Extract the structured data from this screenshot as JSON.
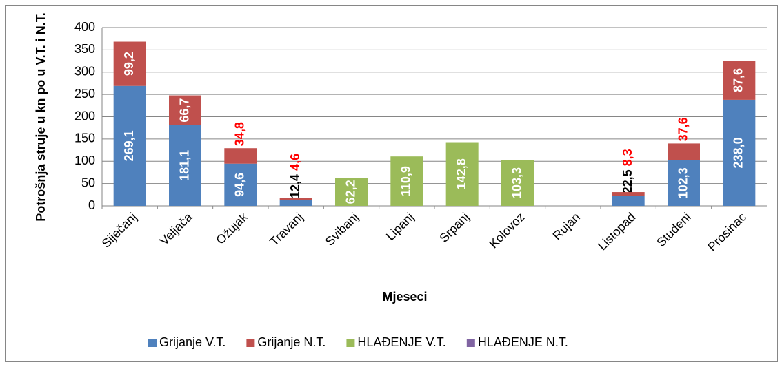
{
  "chart_data": {
    "type": "bar",
    "stacked": true,
    "x_label": "Mjeseci",
    "y_label": "Potrošnja struje u kn po u V.T. i N.T.",
    "categories": [
      "Siječanj",
      "Veljača",
      "Ožujak",
      "Travanj",
      "Svibanj",
      "Lipanj",
      "Srpanj",
      "Kolovoz",
      "Rujan",
      "Listopad",
      "Studeni",
      "Prosinac"
    ],
    "series": [
      {
        "name": "Grijanje V.T.",
        "color": "#4f81bd",
        "values": [
          269.1,
          181.1,
          94.6,
          12.4,
          null,
          null,
          null,
          null,
          null,
          22.5,
          102.3,
          238.0
        ],
        "value_labels": [
          "269,1",
          "181,1",
          "94,6",
          "12,4",
          null,
          null,
          null,
          null,
          null,
          "22,5",
          "102,3",
          "238,0"
        ]
      },
      {
        "name": "Grijanje N.T.",
        "color": "#c0504d",
        "values": [
          99.2,
          66.7,
          34.8,
          4.6,
          null,
          null,
          null,
          null,
          null,
          8.3,
          37.6,
          87.6
        ],
        "value_labels": [
          "99,2",
          "66,7",
          "34,8",
          "4,6",
          null,
          null,
          null,
          null,
          null,
          "8,3",
          "37,6",
          "87,6"
        ]
      },
      {
        "name": "HLAĐENJE V.T.",
        "color": "#9bbb59",
        "values": [
          null,
          null,
          null,
          null,
          62.2,
          110.9,
          142.8,
          103.3,
          null,
          null,
          null,
          null
        ],
        "value_labels": [
          null,
          null,
          null,
          null,
          "62,2",
          "110,9",
          "142,8",
          "103,3",
          null,
          null,
          null,
          null
        ]
      },
      {
        "name": "HLAĐENJE N.T.",
        "color": "#8064a2",
        "values": [
          null,
          null,
          null,
          null,
          null,
          null,
          null,
          null,
          null,
          null,
          null,
          null
        ]
      }
    ],
    "ylim": [
      0,
      400
    ],
    "yticks": [
      0,
      50,
      100,
      150,
      200,
      250,
      300,
      350,
      400
    ],
    "grid": true,
    "legend": "bottom"
  }
}
